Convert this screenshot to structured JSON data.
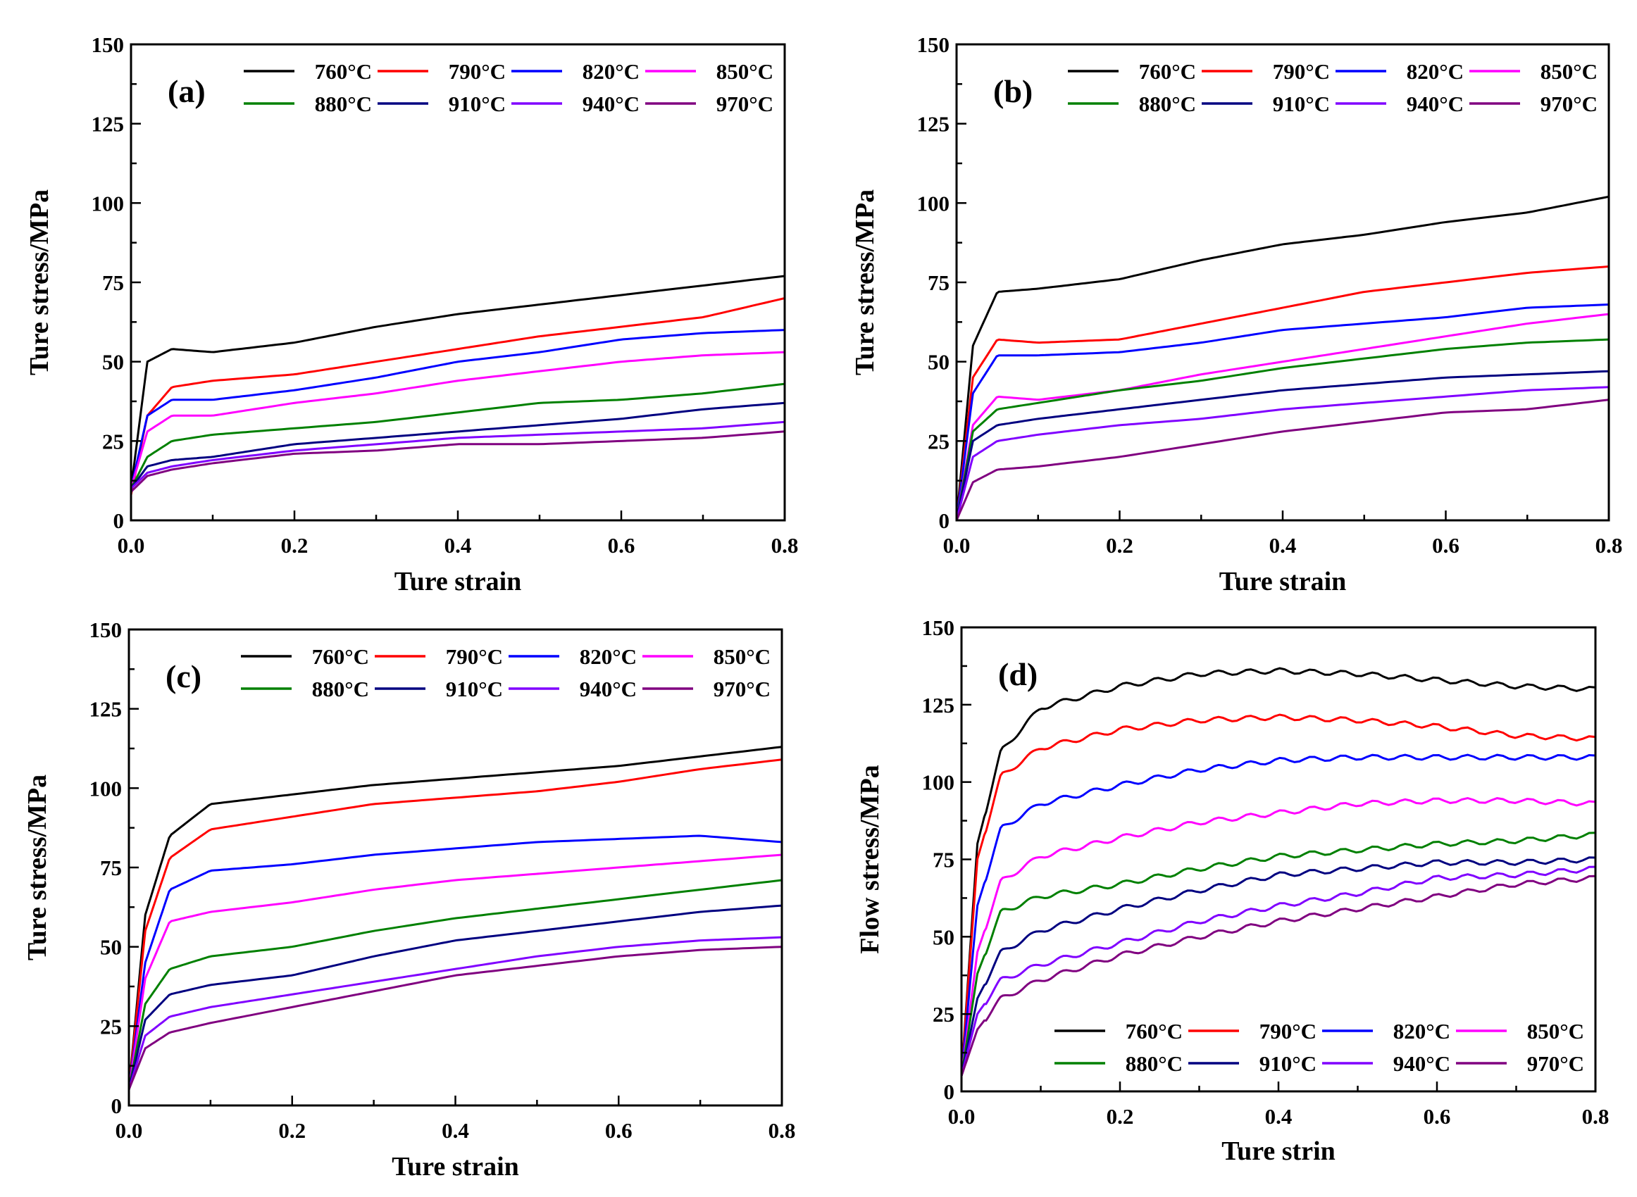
{
  "series_colors": {
    "760°C": "#000000",
    "790°C": "#ff0000",
    "820°C": "#0000ff",
    "850°C": "#ff00ff",
    "880°C": "#008000",
    "910°C": "#000080",
    "940°C": "#8000ff",
    "970°C": "#800080"
  },
  "chart_data": [
    {
      "type": "line",
      "panel_label": "(a)",
      "xlabel": "Ture strain",
      "ylabel": "Ture stress/MPa",
      "xlim": [
        0,
        0.8
      ],
      "ylim": [
        0,
        150
      ],
      "xticks": [
        "0.0",
        "0.2",
        "0.4",
        "0.6",
        "0.8"
      ],
      "yticks": [
        "0",
        "25",
        "50",
        "75",
        "100",
        "125",
        "150"
      ],
      "legend_placement": "top-right",
      "x": [
        0,
        0.02,
        0.05,
        0.1,
        0.2,
        0.3,
        0.4,
        0.5,
        0.6,
        0.7,
        0.8
      ],
      "series": [
        {
          "name": "760°C",
          "values": [
            10,
            50,
            54,
            53,
            56,
            61,
            65,
            68,
            71,
            74,
            77
          ]
        },
        {
          "name": "790°C",
          "values": [
            8,
            33,
            42,
            44,
            46,
            50,
            54,
            58,
            61,
            64,
            70
          ]
        },
        {
          "name": "820°C",
          "values": [
            10,
            33,
            38,
            38,
            41,
            45,
            50,
            53,
            57,
            59,
            60
          ]
        },
        {
          "name": "850°C",
          "values": [
            10,
            28,
            33,
            33,
            37,
            40,
            44,
            47,
            50,
            52,
            53
          ]
        },
        {
          "name": "880°C",
          "values": [
            10,
            20,
            25,
            27,
            29,
            31,
            34,
            37,
            38,
            40,
            43
          ]
        },
        {
          "name": "910°C",
          "values": [
            10,
            17,
            19,
            20,
            24,
            26,
            28,
            30,
            32,
            35,
            37
          ]
        },
        {
          "name": "940°C",
          "values": [
            10,
            15,
            17,
            19,
            22,
            24,
            26,
            27,
            28,
            29,
            31
          ]
        },
        {
          "name": "970°C",
          "values": [
            9,
            14,
            16,
            18,
            21,
            22,
            24,
            24,
            25,
            26,
            28
          ]
        }
      ]
    },
    {
      "type": "line",
      "panel_label": "(b)",
      "xlabel": "Ture strain",
      "ylabel": "Ture stress/MPa",
      "xlim": [
        0,
        0.8
      ],
      "ylim": [
        0,
        150
      ],
      "xticks": [
        "0.0",
        "0.2",
        "0.4",
        "0.6",
        "0.8"
      ],
      "yticks": [
        "0",
        "25",
        "50",
        "75",
        "100",
        "125",
        "150"
      ],
      "legend_placement": "top-right",
      "x": [
        0,
        0.02,
        0.05,
        0.1,
        0.2,
        0.3,
        0.4,
        0.5,
        0.6,
        0.7,
        0.8
      ],
      "series": [
        {
          "name": "760°C",
          "values": [
            0,
            55,
            72,
            73,
            76,
            82,
            87,
            90,
            94,
            97,
            102
          ]
        },
        {
          "name": "790°C",
          "values": [
            0,
            45,
            57,
            56,
            57,
            62,
            67,
            72,
            75,
            78,
            80
          ]
        },
        {
          "name": "820°C",
          "values": [
            0,
            40,
            52,
            52,
            53,
            56,
            60,
            62,
            64,
            67,
            68
          ]
        },
        {
          "name": "850°C",
          "values": [
            0,
            30,
            39,
            38,
            41,
            46,
            50,
            54,
            58,
            62,
            65
          ]
        },
        {
          "name": "880°C",
          "values": [
            0,
            28,
            35,
            37,
            41,
            44,
            48,
            51,
            54,
            56,
            57
          ]
        },
        {
          "name": "910°C",
          "values": [
            0,
            25,
            30,
            32,
            35,
            38,
            41,
            43,
            45,
            46,
            47
          ]
        },
        {
          "name": "940°C",
          "values": [
            0,
            20,
            25,
            27,
            30,
            32,
            35,
            37,
            39,
            41,
            42
          ]
        },
        {
          "name": "970°C",
          "values": [
            0,
            12,
            16,
            17,
            20,
            24,
            28,
            31,
            34,
            35,
            38
          ]
        }
      ]
    },
    {
      "type": "line",
      "panel_label": "(c)",
      "xlabel": "Ture strain",
      "ylabel": "Ture stress/MPa",
      "xlim": [
        0,
        0.8
      ],
      "ylim": [
        0,
        150
      ],
      "xticks": [
        "0.0",
        "0.2",
        "0.4",
        "0.6",
        "0.8"
      ],
      "yticks": [
        "0",
        "25",
        "50",
        "75",
        "100",
        "125",
        "150"
      ],
      "legend_placement": "top-right",
      "x": [
        0,
        0.02,
        0.05,
        0.1,
        0.2,
        0.3,
        0.4,
        0.5,
        0.6,
        0.7,
        0.8
      ],
      "series": [
        {
          "name": "760°C",
          "values": [
            5,
            60,
            85,
            95,
            98,
            101,
            103,
            105,
            107,
            110,
            113
          ]
        },
        {
          "name": "790°C",
          "values": [
            5,
            55,
            78,
            87,
            91,
            95,
            97,
            99,
            102,
            106,
            109
          ]
        },
        {
          "name": "820°C",
          "values": [
            5,
            45,
            68,
            74,
            76,
            79,
            81,
            83,
            84,
            85,
            83
          ]
        },
        {
          "name": "850°C",
          "values": [
            5,
            40,
            58,
            61,
            64,
            68,
            71,
            73,
            75,
            77,
            79
          ]
        },
        {
          "name": "880°C",
          "values": [
            5,
            32,
            43,
            47,
            50,
            55,
            59,
            62,
            65,
            68,
            71
          ]
        },
        {
          "name": "910°C",
          "values": [
            5,
            27,
            35,
            38,
            41,
            47,
            52,
            55,
            58,
            61,
            63
          ]
        },
        {
          "name": "940°C",
          "values": [
            5,
            22,
            28,
            31,
            35,
            39,
            43,
            47,
            50,
            52,
            53
          ]
        },
        {
          "name": "970°C",
          "values": [
            5,
            18,
            23,
            26,
            31,
            36,
            41,
            44,
            47,
            49,
            50
          ]
        }
      ]
    },
    {
      "type": "line",
      "panel_label": "(d)",
      "xlabel": "Ture strin",
      "ylabel": "Flow stress/MPa",
      "xlim": [
        0,
        0.8
      ],
      "ylim": [
        0,
        150
      ],
      "xticks": [
        "0.0",
        "0.2",
        "0.4",
        "0.6",
        "0.8"
      ],
      "yticks": [
        "0",
        "25",
        "50",
        "75",
        "100",
        "125",
        "150"
      ],
      "legend_placement": "bottom-right",
      "x": [
        0,
        0.02,
        0.05,
        0.1,
        0.2,
        0.3,
        0.4,
        0.5,
        0.6,
        0.7,
        0.8
      ],
      "series": [
        {
          "name": "760°C",
          "values": [
            5,
            80,
            110,
            124,
            131,
            135,
            136,
            135,
            133,
            131,
            130
          ]
        },
        {
          "name": "790°C",
          "values": [
            5,
            75,
            102,
            111,
            117,
            120,
            121,
            120,
            118,
            115,
            114
          ]
        },
        {
          "name": "820°C",
          "values": [
            5,
            60,
            85,
            93,
            99,
            104,
            107,
            108,
            108,
            108,
            108
          ]
        },
        {
          "name": "850°C",
          "values": [
            5,
            45,
            68,
            76,
            82,
            87,
            90,
            93,
            94,
            94,
            93
          ]
        },
        {
          "name": "880°C",
          "values": [
            5,
            38,
            58,
            63,
            67,
            72,
            76,
            78,
            80,
            81,
            83
          ]
        },
        {
          "name": "910°C",
          "values": [
            5,
            30,
            45,
            52,
            59,
            65,
            70,
            72,
            74,
            74,
            75
          ]
        },
        {
          "name": "940°C",
          "values": [
            5,
            25,
            36,
            41,
            48,
            55,
            60,
            64,
            69,
            70,
            72
          ]
        },
        {
          "name": "970°C",
          "values": [
            5,
            20,
            30,
            36,
            44,
            50,
            55,
            59,
            63,
            67,
            69
          ]
        }
      ]
    }
  ]
}
